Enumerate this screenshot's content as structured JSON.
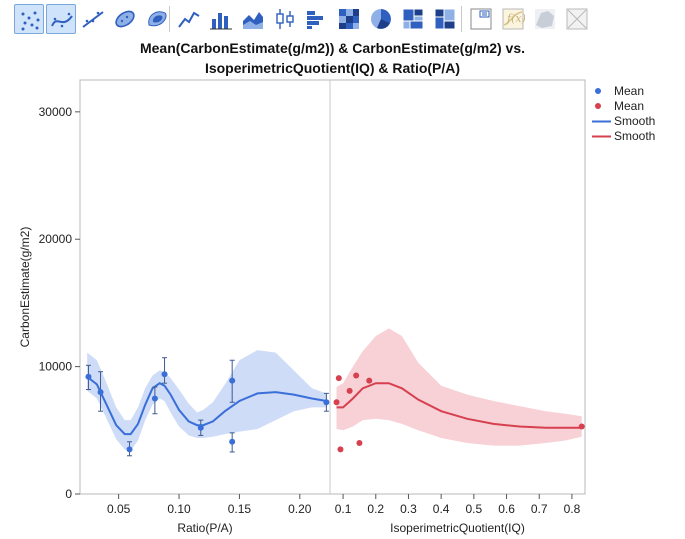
{
  "toolbar": {
    "buttons": [
      {
        "icon": "points-icon",
        "selected": true
      },
      {
        "icon": "smoother-icon",
        "selected": true
      },
      {
        "icon": "line-of-fit-icon",
        "selected": false
      },
      {
        "icon": "ellipse-icon",
        "selected": false
      },
      {
        "icon": "contour-icon",
        "selected": false
      },
      {
        "icon": "line-icon",
        "selected": false
      },
      {
        "icon": "bar-icon",
        "selected": false
      },
      {
        "icon": "area-icon",
        "selected": false
      },
      {
        "icon": "box-plot-icon",
        "selected": false
      },
      {
        "icon": "histogram-icon",
        "selected": false
      },
      {
        "icon": "heatmap-icon",
        "selected": false
      },
      {
        "icon": "pie-icon",
        "selected": false
      },
      {
        "icon": "treemap-icon",
        "selected": false
      },
      {
        "icon": "mosaic-icon",
        "selected": false
      },
      {
        "icon": "caption-box-icon",
        "selected": false
      },
      {
        "icon": "formula-icon",
        "selected": false
      },
      {
        "icon": "map-shape-icon",
        "selected": false
      },
      {
        "icon": "disabled-cross-icon",
        "selected": false
      }
    ]
  },
  "chart_data": {
    "type": "scatter",
    "title_lines": [
      "Mean(CarbonEstimate(g/m2)) & CarbonEstimate(g/m2) vs.",
      "IsoperimetricQuotient(IQ) & Ratio(P/A)"
    ],
    "ylabel": "CarbonEstimate(g/m2)",
    "ylim": [
      0,
      32500
    ],
    "yticks": [
      0,
      10000,
      20000,
      30000
    ],
    "ytick_labels": [
      "0",
      "10000",
      "20000",
      "30000"
    ],
    "grid": false,
    "legend": {
      "position": "right",
      "entries": [
        {
          "label": "Mean",
          "kind": "marker",
          "color": "#3a6fd8"
        },
        {
          "label": "Mean",
          "kind": "marker",
          "color": "#d6404f"
        },
        {
          "label": "Smooth",
          "kind": "line",
          "color": "#3a6fd8"
        },
        {
          "label": "Smooth",
          "kind": "line",
          "color": "#d6404f"
        }
      ]
    },
    "panels": [
      {
        "xlabel": "Ratio(P/A)",
        "xlim": [
          0.018,
          0.225
        ],
        "xticks": [
          0.05,
          0.1,
          0.15,
          0.2
        ],
        "xtick_labels": [
          "0.05",
          "0.10",
          "0.15",
          "0.20"
        ],
        "color": "#3a6fd8",
        "band_color": "#c9d8f6",
        "means": [
          {
            "x": 0.025,
            "y": 9200,
            "lo": 8200,
            "hi": 10100
          },
          {
            "x": 0.035,
            "y": 8000,
            "lo": 6500,
            "hi": 9600
          },
          {
            "x": 0.059,
            "y": 3500,
            "lo": 3000,
            "hi": 4100
          },
          {
            "x": 0.08,
            "y": 7500,
            "lo": 6300,
            "hi": 8400
          },
          {
            "x": 0.088,
            "y": 9400,
            "lo": 8700,
            "hi": 10700
          },
          {
            "x": 0.118,
            "y": 5200,
            "lo": 4600,
            "hi": 5800
          },
          {
            "x": 0.144,
            "y": 4100,
            "lo": 3300,
            "hi": 4800
          },
          {
            "x": 0.144,
            "y": 8900,
            "lo": 7200,
            "hi": 10500
          },
          {
            "x": 0.222,
            "y": 7200,
            "lo": 6500,
            "hi": 7900
          }
        ],
        "smooth": {
          "x": [
            0.024,
            0.032,
            0.04,
            0.048,
            0.055,
            0.06,
            0.066,
            0.072,
            0.078,
            0.084,
            0.088,
            0.093,
            0.1,
            0.108,
            0.115,
            0.12,
            0.128,
            0.138,
            0.15,
            0.165,
            0.18,
            0.195,
            0.21,
            0.222
          ],
          "y": [
            9200,
            8600,
            7000,
            5400,
            4700,
            4700,
            5500,
            7000,
            8300,
            8700,
            8500,
            7800,
            6600,
            5700,
            5400,
            5400,
            5700,
            6500,
            7300,
            7900,
            8000,
            7800,
            7500,
            7300
          ],
          "lo": [
            8100,
            7500,
            5900,
            4300,
            3500,
            3400,
            4200,
            5800,
            7000,
            7500,
            7300,
            6400,
            5300,
            4600,
            4400,
            4400,
            4500,
            4700,
            4900,
            5100,
            5800,
            6500,
            6800,
            6800
          ],
          "hi": [
            11100,
            10500,
            8700,
            6800,
            5800,
            5800,
            6800,
            8300,
            9300,
            9700,
            9600,
            9100,
            8200,
            7100,
            6400,
            6600,
            7200,
            8600,
            10500,
            11300,
            11100,
            9700,
            8300,
            7900
          ]
        }
      },
      {
        "xlabel": "IsoperimetricQuotient(IQ)",
        "xlim": [
          0.06,
          0.84
        ],
        "xticks": [
          0.1,
          0.2,
          0.3,
          0.4,
          0.5,
          0.6,
          0.7,
          0.8
        ],
        "xtick_labels": [
          "0.1",
          "0.2",
          "0.3",
          "0.4",
          "0.5",
          "0.6",
          "0.7",
          "0.8"
        ],
        "color": "#d6404f",
        "band_color": "#f6ccd2",
        "means": [
          {
            "x": 0.08,
            "y": 7200
          },
          {
            "x": 0.087,
            "y": 9100
          },
          {
            "x": 0.092,
            "y": 3500
          },
          {
            "x": 0.12,
            "y": 8100
          },
          {
            "x": 0.14,
            "y": 9300
          },
          {
            "x": 0.15,
            "y": 4000
          },
          {
            "x": 0.18,
            "y": 8900
          },
          {
            "x": 0.83,
            "y": 5300
          }
        ],
        "smooth": {
          "x": [
            0.08,
            0.1,
            0.13,
            0.16,
            0.2,
            0.24,
            0.28,
            0.33,
            0.4,
            0.48,
            0.56,
            0.64,
            0.72,
            0.78,
            0.83
          ],
          "y": [
            6800,
            6800,
            7500,
            8300,
            8700,
            8700,
            8300,
            7400,
            6500,
            5900,
            5500,
            5300,
            5200,
            5200,
            5200
          ],
          "lo": [
            5100,
            5000,
            5300,
            5800,
            5900,
            5800,
            5500,
            5000,
            4400,
            4000,
            3800,
            3800,
            4000,
            4200,
            4500
          ],
          "hi": [
            8400,
            8700,
            10000,
            11200,
            12400,
            13000,
            12400,
            10300,
            8500,
            7800,
            7300,
            6900,
            6500,
            6300,
            6100
          ]
        }
      }
    ]
  }
}
